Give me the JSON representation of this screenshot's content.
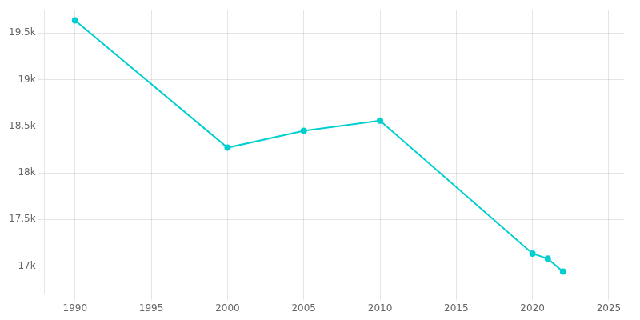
{
  "chart_data": {
    "type": "line",
    "x": [
      1990,
      2000,
      2005,
      2010,
      2020,
      2021,
      2022
    ],
    "values": [
      19635,
      18270,
      18450,
      18560,
      17135,
      17080,
      16940
    ],
    "color": "#00CED1",
    "marker": "circle",
    "xlim": [
      1988,
      2026
    ],
    "ylim": [
      16700,
      19750
    ],
    "xticks": [
      1990,
      1995,
      2000,
      2005,
      2010,
      2015,
      2020,
      2025
    ],
    "yticks": [
      {
        "value": 17000,
        "label": "17k"
      },
      {
        "value": 17500,
        "label": "17.5k"
      },
      {
        "value": 18000,
        "label": "18k"
      },
      {
        "value": 18500,
        "label": "18.5k"
      },
      {
        "value": 19000,
        "label": "19k"
      },
      {
        "value": 19500,
        "label": "19.5k"
      }
    ],
    "grid": true
  }
}
